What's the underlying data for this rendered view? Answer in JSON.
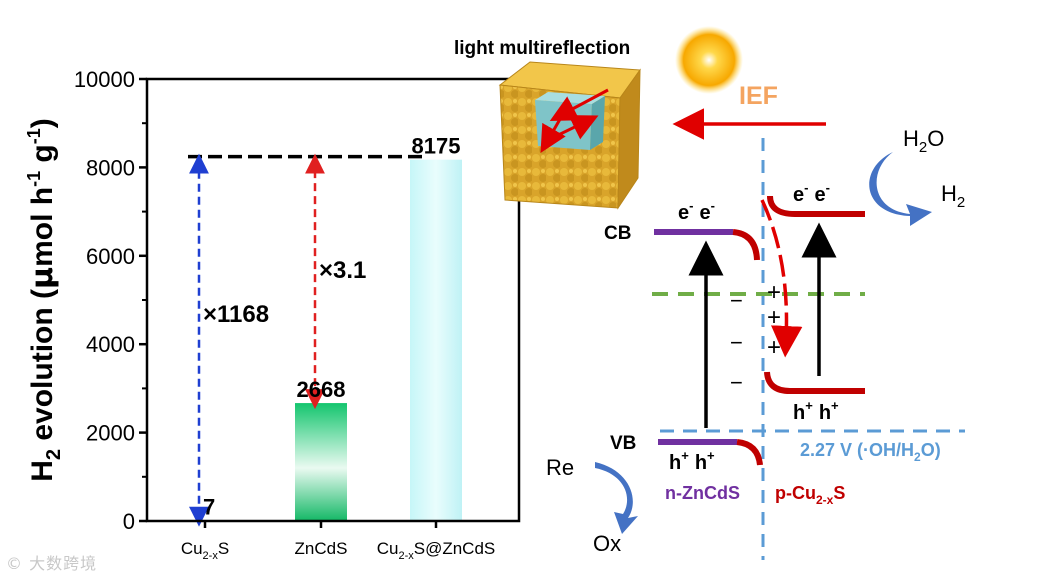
{
  "chart_data": {
    "type": "bar",
    "categories": [
      "Cu2-xS",
      "ZnCdS",
      "Cu2-xS@ZnCdS"
    ],
    "category_labels": [
      {
        "base": "Cu",
        "sub": "2-x",
        "tail": "S",
        "mid": "",
        "sub2": "",
        "tail2": ""
      },
      {
        "base": "ZnCdS",
        "sub": "",
        "tail": "",
        "mid": "",
        "sub2": "",
        "tail2": ""
      },
      {
        "base": "Cu",
        "sub": "2-x",
        "tail": "S@ZnCdS",
        "mid": "",
        "sub2": "",
        "tail2": ""
      }
    ],
    "values": [
      7,
      2668,
      8175
    ],
    "value_labels": [
      "7",
      "2668",
      "8175"
    ],
    "bar_colors": [
      "#1f4fd1",
      "#19c06e",
      "#bff4f6"
    ],
    "ylim": [
      0,
      10000
    ],
    "yticks": [
      0,
      2000,
      4000,
      6000,
      8000,
      10000
    ],
    "ytick_labels": [
      "0",
      "2000",
      "4000",
      "6000",
      "8000",
      "10000"
    ],
    "ylabel": {
      "p1": "H",
      "sub": "2",
      "p2": " evolution (",
      "mu": "μ",
      "p3": "mol h",
      "sup1": "-1",
      "p4": " g",
      "sup2": "-1",
      "p5": ")"
    },
    "reference_line_value": 8175,
    "enhancements": [
      {
        "label": "×1168",
        "from": 7,
        "to": 8175,
        "color": "#1f3fd1"
      },
      {
        "label": "×3.1",
        "from": 2668,
        "to": 8175,
        "color": "#e02020"
      }
    ]
  },
  "diagram": {
    "cube_label": "light multireflection",
    "ief_label": "IEF",
    "cb_label": "CB",
    "vb_label": "VB",
    "electrons_left": {
      "a": "e",
      "b": "e",
      "sup": "-"
    },
    "electrons_right": {
      "a": "e",
      "b": "e",
      "sup": "-"
    },
    "holes_left": {
      "a": "h",
      "b": "h",
      "sup": "+"
    },
    "holes_right": {
      "a": "h",
      "b": "h",
      "sup": "+"
    },
    "minus_sign": "−",
    "plus_sign": "+",
    "h2o": {
      "base": "H",
      "sub": "2",
      "tail": "O"
    },
    "h2": {
      "base": "H",
      "sub": "2"
    },
    "re_label": "Re",
    "ox_label": "Ox",
    "n_label": "n-ZnCdS",
    "p_label": {
      "base": "p-Cu",
      "sub": "2-x",
      "tail": "S"
    },
    "potential_label": {
      "p1": "2.27 V (·OH/H",
      "sub": "2",
      "p2": "O)"
    },
    "colors": {
      "purple": "#7030a0",
      "darkred": "#c00000",
      "green": "#70ad47",
      "blue_dash": "#5b9bd5",
      "ief": "#f4a460",
      "arrow_blue": "#4472c4"
    }
  },
  "watermark": "大数跨境"
}
